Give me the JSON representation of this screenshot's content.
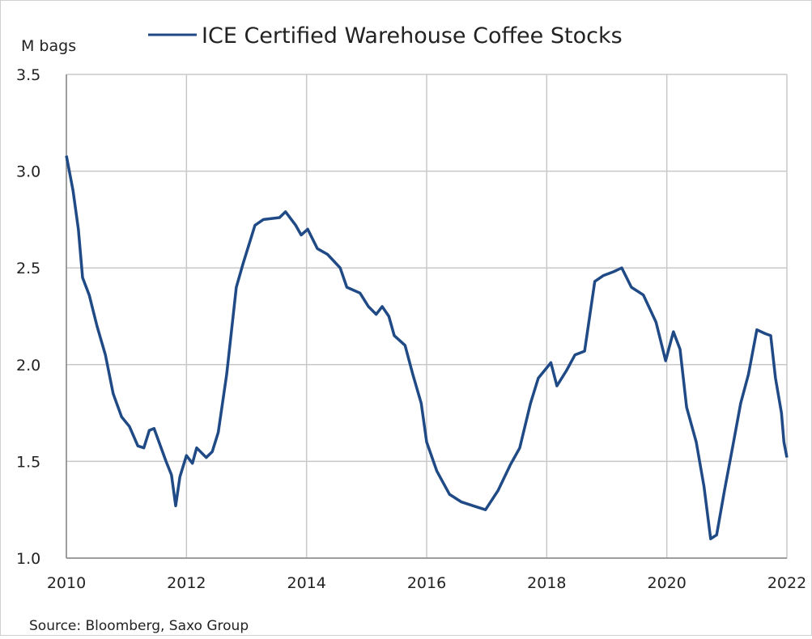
{
  "chart_data": {
    "type": "line",
    "series": [
      {
        "name": "ICE Certified Warehouse Coffee Stocks",
        "color": "#1f4a86",
        "x": [
          2010.0,
          2010.11,
          2010.2,
          2010.27,
          2010.38,
          2010.51,
          2010.65,
          2010.78,
          2010.92,
          2011.05,
          2011.19,
          2011.29,
          2011.38,
          2011.46,
          2011.66,
          2011.75,
          2011.82,
          2011.89,
          2012.0,
          2012.1,
          2012.17,
          2012.33,
          2012.43,
          2012.53,
          2012.67,
          2012.83,
          2012.94,
          2013.14,
          2013.28,
          2013.55,
          2013.65,
          2013.82,
          2013.91,
          2014.02,
          2014.18,
          2014.35,
          2014.56,
          2014.67,
          2014.89,
          2015.03,
          2015.16,
          2015.26,
          2015.37,
          2015.46,
          2015.64,
          2015.77,
          2015.91,
          2016.0,
          2016.17,
          2016.38,
          2016.58,
          2016.78,
          2016.98,
          2017.19,
          2017.39,
          2017.55,
          2017.73,
          2017.86,
          2018.07,
          2018.17,
          2018.33,
          2018.47,
          2018.63,
          2018.8,
          2018.94,
          2019.11,
          2019.25,
          2019.41,
          2019.61,
          2019.82,
          2019.98,
          2020.11,
          2020.22,
          2020.33,
          2020.49,
          2020.62,
          2020.73,
          2020.83,
          2020.96,
          2021.1,
          2021.23,
          2021.36,
          2021.5,
          2021.64,
          2021.73,
          2021.81,
          2021.91,
          2021.95,
          2022.0
        ],
        "values": [
          3.08,
          2.9,
          2.7,
          2.45,
          2.36,
          2.2,
          2.05,
          1.85,
          1.73,
          1.68,
          1.58,
          1.57,
          1.66,
          1.67,
          1.5,
          1.43,
          1.27,
          1.42,
          1.53,
          1.49,
          1.57,
          1.52,
          1.55,
          1.65,
          1.95,
          2.4,
          2.52,
          2.72,
          2.75,
          2.76,
          2.79,
          2.72,
          2.67,
          2.7,
          2.6,
          2.57,
          2.5,
          2.4,
          2.37,
          2.3,
          2.26,
          2.3,
          2.25,
          2.15,
          2.1,
          1.95,
          1.8,
          1.6,
          1.45,
          1.33,
          1.29,
          1.27,
          1.25,
          1.35,
          1.48,
          1.57,
          1.8,
          1.93,
          2.01,
          1.89,
          1.97,
          2.05,
          2.07,
          2.43,
          2.46,
          2.48,
          2.5,
          2.4,
          2.36,
          2.22,
          2.02,
          2.17,
          2.08,
          1.78,
          1.6,
          1.37,
          1.1,
          1.12,
          1.35,
          1.58,
          1.8,
          1.95,
          2.18,
          2.16,
          2.15,
          1.93,
          1.75,
          1.6,
          1.52
        ]
      }
    ],
    "y_label": "M bags",
    "source": "Source: Bloomberg, Saxo Group",
    "xlim": [
      2010,
      2022
    ],
    "xticks": [
      2010,
      2012,
      2014,
      2016,
      2018,
      2020,
      2022
    ],
    "ylim": [
      1,
      3.5
    ],
    "yticks": [
      {
        "value": 1,
        "label": "1.0"
      },
      1.5,
      {
        "value": 2,
        "label": "2.0"
      },
      2.5,
      {
        "value": 3,
        "label": "3.0"
      },
      3.5
    ],
    "grid": true
  }
}
